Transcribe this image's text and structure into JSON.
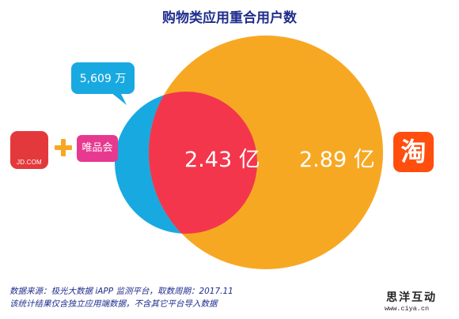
{
  "title": "购物类应用重合用户数",
  "venn": {
    "left_only_callout": "5,609 万",
    "overlap_label": "2.43 亿",
    "right_only_label": "2.89 亿"
  },
  "logos": {
    "jd_text": "JD.COM",
    "vip_text": "唯品会",
    "taobao_text": "淘"
  },
  "source_note": {
    "line1": "数据来源：极光大数据 iAPP 监测平台，取数周期：2017.11",
    "line2": "该统计结果仅含独立应用端数据，不含其它平台导入数据"
  },
  "watermark": {
    "cn": "思洋互动",
    "url": "www.ciya.cn"
  },
  "colors": {
    "title": "#1e2d8c",
    "left_circle": "#19a9e1",
    "right_circle": "#f7a823",
    "overlap": "#f4364c",
    "callout": "#19a9e1",
    "plus": "#f7a823",
    "jd": "#e4393c",
    "vip": "#e7398f",
    "taobao": "#ff4e0e"
  }
}
